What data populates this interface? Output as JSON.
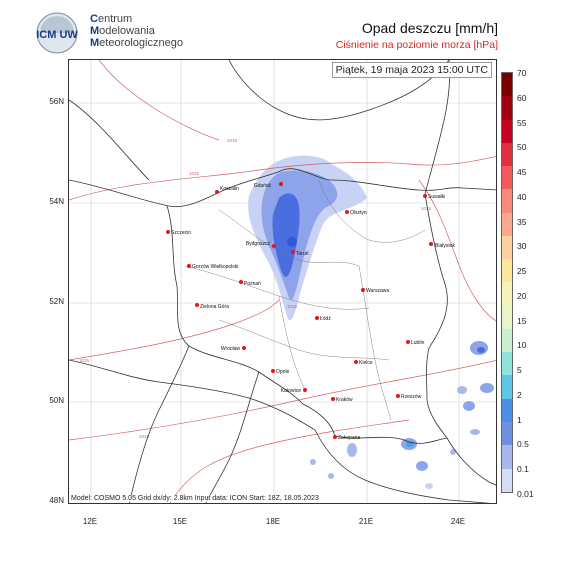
{
  "org": {
    "logo_text": "ICM UW",
    "line1_cap": "C",
    "line1_rest": "entrum",
    "line2_cap": "M",
    "line2_rest": "odelowania",
    "line3_cap": "M",
    "line3_rest": "eteorologicznego"
  },
  "title": "Opad deszczu [mm/h]",
  "subtitle": "Ciśnienie na poziomie morza [hPa]",
  "validity": "Piątek, 19 maja 2023 15:00 UTC",
  "footer": "Model: COSMO 5.05  Grid dx/dy: 2.8km  Input data: ICON  Start: 18Z, 18.05.2023",
  "lat_labels": [
    "56N",
    "54N",
    "52N",
    "50N",
    "48N"
  ],
  "lon_labels": [
    "12E",
    "15E",
    "18E",
    "21E",
    "24E"
  ],
  "colorbar": {
    "labels": [
      "70",
      "60",
      "55",
      "50",
      "45",
      "40",
      "35",
      "30",
      "25",
      "20",
      "15",
      "10",
      "5",
      "2",
      "1",
      "0.5",
      "0.1",
      "0.01"
    ],
    "colors": [
      "#7a0000",
      "#a00010",
      "#c80022",
      "#e03040",
      "#f05a5a",
      "#f88a7a",
      "#fba890",
      "#fdd0a0",
      "#fbe89a",
      "#f5f3b8",
      "#e8f5c8",
      "#c8f0d0",
      "#8fe3da",
      "#5ec8e6",
      "#4a8fe6",
      "#6f8fe0",
      "#a8b8ee",
      "#d4dcf6"
    ]
  },
  "cities": [
    {
      "name": "Gdańsk"
    },
    {
      "name": "Koszalin"
    },
    {
      "name": "Suwałki"
    },
    {
      "name": "Olsztyn"
    },
    {
      "name": "Szczecin"
    },
    {
      "name": "Bydgoszcz"
    },
    {
      "name": "Toruń"
    },
    {
      "name": "Białystok"
    },
    {
      "name": "Gorzów Wielkopolski"
    },
    {
      "name": "Poznań"
    },
    {
      "name": "Warszawa"
    },
    {
      "name": "Zielona Góra"
    },
    {
      "name": "Łódź"
    },
    {
      "name": "Lublin"
    },
    {
      "name": "Wrocław"
    },
    {
      "name": "Kielce"
    },
    {
      "name": "Opole"
    },
    {
      "name": "Katowice"
    },
    {
      "name": "Rzeszów"
    },
    {
      "name": "Kraków"
    },
    {
      "name": "Zakopane"
    }
  ],
  "isobar_labels": [
    "1015",
    "1015",
    "1015",
    "1015",
    "1015",
    "1015"
  ],
  "colors": {
    "isobar": "#d86060",
    "border": "#333333",
    "city": "#e01818",
    "rain_light": "#c8d2f4",
    "rain_mid": "#8ea4ea",
    "rain_heavy": "#4a6ee0"
  }
}
